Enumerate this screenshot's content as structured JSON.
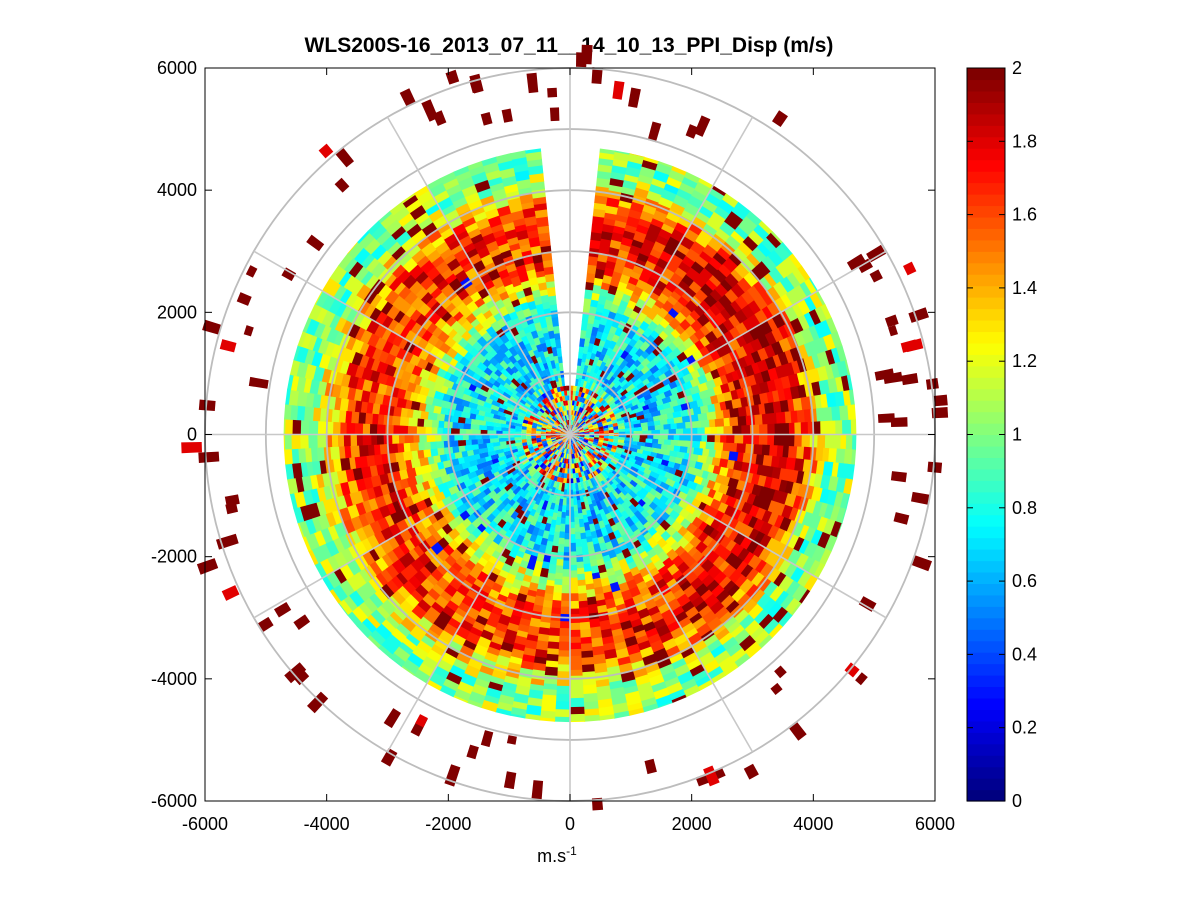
{
  "chart_data": {
    "type": "heatmap",
    "subtype": "polar-ppi",
    "title": "WLS200S-16_2013_07_11__14_10_13_PPI_Disp (m/s)",
    "xlabel_base": "m.s",
    "xlabel_exp": "-1",
    "ylabel": "",
    "xlim": [
      -6000,
      6000
    ],
    "ylim": [
      -6000,
      6000
    ],
    "x_ticks": [
      -6000,
      -4000,
      -2000,
      0,
      2000,
      4000,
      6000
    ],
    "x_tick_labels": [
      "-6000",
      "-4000",
      "-2000",
      "0",
      "2000",
      "4000",
      "6000"
    ],
    "y_ticks": [
      -6000,
      -4000,
      -2000,
      0,
      2000,
      4000,
      6000
    ],
    "y_tick_labels": [
      "-6000",
      "-4000",
      "-2000",
      "0",
      "2000",
      "4000",
      "6000"
    ],
    "grid": true,
    "polar_grid_radii": [
      1000,
      2000,
      3000,
      4000,
      5000,
      6000
    ],
    "polar_grid_spoke_step_deg": 30,
    "data_range_max": 4700,
    "missing_sector_deg": [
      -5,
      5
    ],
    "radial_profile": [
      {
        "r": 0,
        "value": 1.0
      },
      {
        "r": 700,
        "value": 1.4
      },
      {
        "r": 900,
        "value": 0.7
      },
      {
        "r": 2000,
        "value": 0.75
      },
      {
        "r": 2800,
        "value": 1.6
      },
      {
        "r": 3600,
        "value": 1.7
      },
      {
        "r": 4300,
        "value": 1.0
      },
      {
        "r": 4700,
        "value": 1.05
      }
    ],
    "outer_sparse_value": 2.0,
    "colorbar": {
      "min": 0,
      "max": 2,
      "ticks": [
        0,
        0.2,
        0.4,
        0.6,
        0.8,
        1,
        1.2,
        1.4,
        1.6,
        1.8,
        2
      ],
      "tick_labels": [
        "0",
        "0.2",
        "0.4",
        "0.6",
        "0.8",
        "1",
        "1.2",
        "1.4",
        "1.6",
        "1.8",
        "2"
      ],
      "colormap": "jet",
      "levels": 64
    }
  }
}
